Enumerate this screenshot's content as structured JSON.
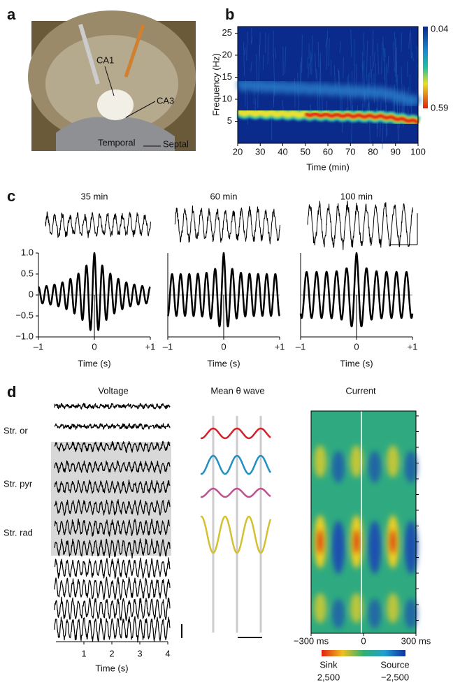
{
  "panels": [
    {
      "label": "a",
      "annotations": [
        "CA1",
        "CA3",
        "Temporal",
        "Septal"
      ]
    },
    {
      "label": "b",
      "xlabel": "Time (min)",
      "ylabel": "Frequency (Hz)",
      "xlim": [
        20,
        100
      ],
      "xticks": [
        20,
        30,
        40,
        50,
        60,
        70,
        80,
        90,
        100
      ],
      "ylim": [
        0,
        26.5
      ],
      "yticks": [
        5,
        10,
        15,
        20,
        25
      ],
      "colorbar_ticks": [
        0.04,
        0.59
      ]
    },
    {
      "label": "c",
      "titles": [
        "35 min",
        "60 min",
        "100 min"
      ],
      "ylim": [
        -1,
        1
      ],
      "yticks": [
        {
          "value": -1,
          "label": "−1.0"
        },
        {
          "value": -0.5,
          "label": "−0.5"
        },
        0,
        0.5,
        {
          "value": 1,
          "label": "1.0"
        }
      ],
      "xlim": [
        -1,
        1
      ],
      "xticks": [
        {
          "value": -1,
          "label": "–1"
        },
        0,
        {
          "value": 1,
          "label": "+1"
        }
      ],
      "xlabel": "Time (s)"
    },
    {
      "label": "d",
      "titles": [
        "Voltage",
        "Mean θ wave",
        "Current"
      ],
      "layers": [
        "Str. or",
        "Str. pyr",
        "Str. rad"
      ],
      "voltage_xlim": [
        0,
        4
      ],
      "voltage_xticks": [
        1,
        2,
        3,
        4
      ],
      "xlabel": "Time (s)",
      "current_xlim": [
        -300,
        300
      ],
      "current_xticks": [
        {
          "value": -300,
          "label": "−300 ms"
        },
        0,
        {
          "value": 300,
          "label": "300 ms"
        }
      ],
      "colorbar_labels": [
        "Sink",
        "Source"
      ],
      "colorbar_ticks": [
        {
          "value": 2500,
          "label": "2,500"
        },
        {
          "value": -2500,
          "label": "−2,500"
        }
      ]
    }
  ]
}
